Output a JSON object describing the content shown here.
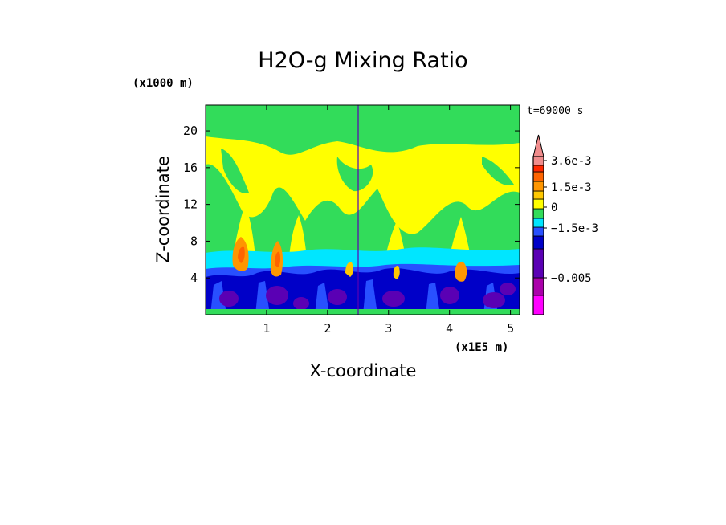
{
  "chart_data": {
    "type": "heatmap",
    "title": "H2O-g Mixing Ratio",
    "xlabel": "X-coordinate",
    "ylabel": "Z-coordinate",
    "x_unit": "(x1E5 m)",
    "y_unit": "(x1000 m)",
    "time_label": "t=69000 s",
    "xlim": [
      0,
      5.15
    ],
    "ylim": [
      0,
      22.8
    ],
    "x_ticks": [
      1,
      2,
      3,
      4,
      5
    ],
    "y_ticks": [
      4,
      8,
      12,
      16,
      20
    ],
    "x_tick_labels": [
      "1",
      "2",
      "3",
      "4",
      "5"
    ],
    "y_tick_labels": [
      "4",
      "8",
      "12",
      "16",
      "20"
    ],
    "colorbar": {
      "levels": [
        {
          "color": "#ff00ff"
        },
        {
          "color": "#aa00aa"
        },
        {
          "color": "#5a00b4"
        },
        {
          "color": "#0000c8"
        },
        {
          "color": "#2850ff"
        },
        {
          "color": "#00e6ff"
        },
        {
          "color": "#32dc5a"
        },
        {
          "color": "#ffff00"
        },
        {
          "color": "#ffc800"
        },
        {
          "color": "#ff9600"
        },
        {
          "color": "#ff6400"
        },
        {
          "color": "#ff2800"
        },
        {
          "color": "#f08c8c"
        }
      ],
      "labels": [
        {
          "text": "3.6e-3",
          "value": 0.0036
        },
        {
          "text": "1.5e-3",
          "value": 0.0015
        },
        {
          "text": "0",
          "value": 0
        },
        {
          "text": "−1.5e-3",
          "value": -0.0015
        },
        {
          "text": "−0.005",
          "value": -0.005
        }
      ]
    }
  }
}
